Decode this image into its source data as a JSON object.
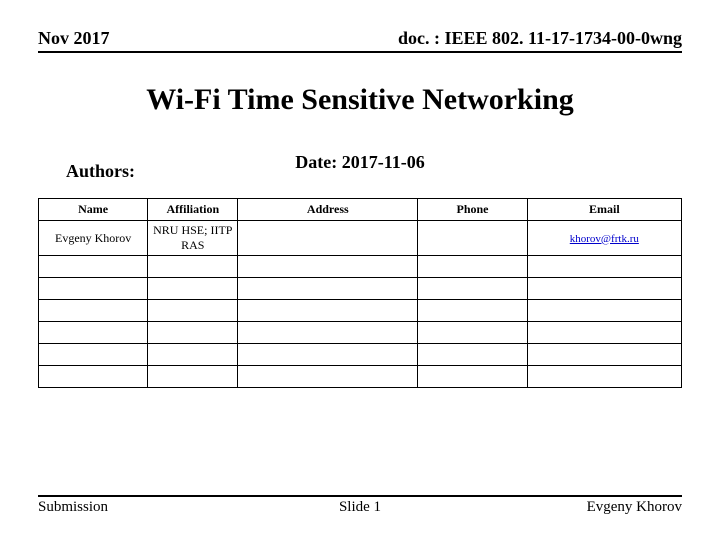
{
  "header": {
    "left": "Nov 2017",
    "right": "doc. : IEEE 802. 11-17-1734-00-0wng"
  },
  "title": "Wi-Fi Time Sensitive Networking",
  "date_line": "Date: 2017-11-06",
  "authors_label": "Authors:",
  "table": {
    "columns": [
      "Name",
      "Affiliation",
      "Address",
      "Phone",
      "Email"
    ],
    "col_classes": [
      "col-name",
      "col-aff",
      "col-addr",
      "col-phone",
      "col-email"
    ],
    "rows": [
      {
        "name": "Evgeny Khorov",
        "affiliation": "NRU HSE; IITP RAS",
        "address": "",
        "phone": "",
        "email": "khorov@frtk.ru"
      },
      {
        "name": "",
        "affiliation": "",
        "address": "",
        "phone": "",
        "email": ""
      },
      {
        "name": "",
        "affiliation": "",
        "address": "",
        "phone": "",
        "email": ""
      },
      {
        "name": "",
        "affiliation": "",
        "address": "",
        "phone": "",
        "email": ""
      },
      {
        "name": "",
        "affiliation": "",
        "address": "",
        "phone": "",
        "email": ""
      },
      {
        "name": "",
        "affiliation": "",
        "address": "",
        "phone": "",
        "email": ""
      },
      {
        "name": "",
        "affiliation": "",
        "address": "",
        "phone": "",
        "email": ""
      }
    ]
  },
  "footer": {
    "left": "Submission",
    "center": "Slide 1",
    "right": "Evgeny Khorov"
  },
  "style": {
    "background_color": "#ffffff",
    "text_color": "#000000",
    "link_color": "#0000cc",
    "border_color": "#000000",
    "font_family": "Times New Roman",
    "title_fontsize": 30,
    "header_fontsize": 18,
    "table_fontsize": 12,
    "footer_fontsize": 15
  }
}
